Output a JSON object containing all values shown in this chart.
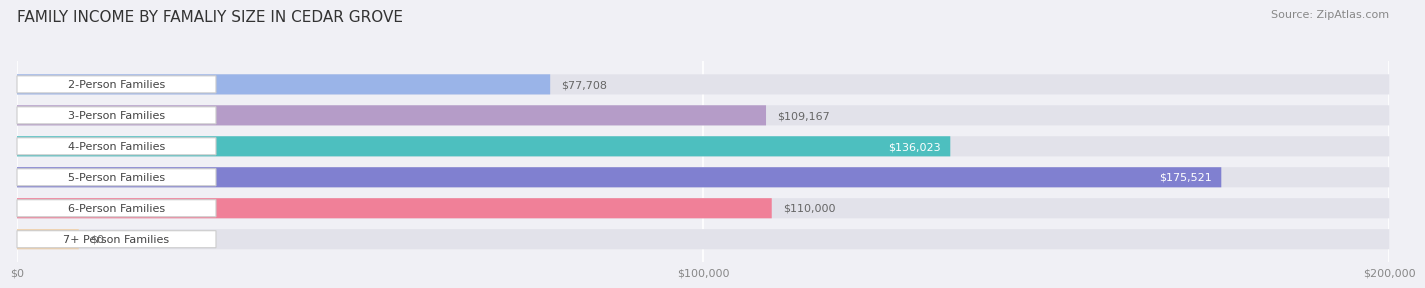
{
  "title": "FAMILY INCOME BY FAMALIY SIZE IN CEDAR GROVE",
  "source": "Source: ZipAtlas.com",
  "categories": [
    "2-Person Families",
    "3-Person Families",
    "4-Person Families",
    "5-Person Families",
    "6-Person Families",
    "7+ Person Families"
  ],
  "values": [
    77708,
    109167,
    136023,
    175521,
    110000,
    0
  ],
  "labels": [
    "$77,708",
    "$109,167",
    "$136,023",
    "$175,521",
    "$110,000",
    "$0"
  ],
  "bar_colors": [
    "#9ab4e8",
    "#b59cc8",
    "#4dbfbf",
    "#8080d0",
    "#f08098",
    "#f0d0a8"
  ],
  "xmax": 200000,
  "xticks": [
    0,
    100000,
    200000
  ],
  "xticklabels": [
    "$0",
    "$100,000",
    "$200,000"
  ],
  "background_color": "#f0f0f5",
  "bar_background_color": "#e2e2ea",
  "title_fontsize": 11,
  "source_fontsize": 8,
  "bar_height": 0.65,
  "label_fontsize": 8,
  "category_fontsize": 8
}
